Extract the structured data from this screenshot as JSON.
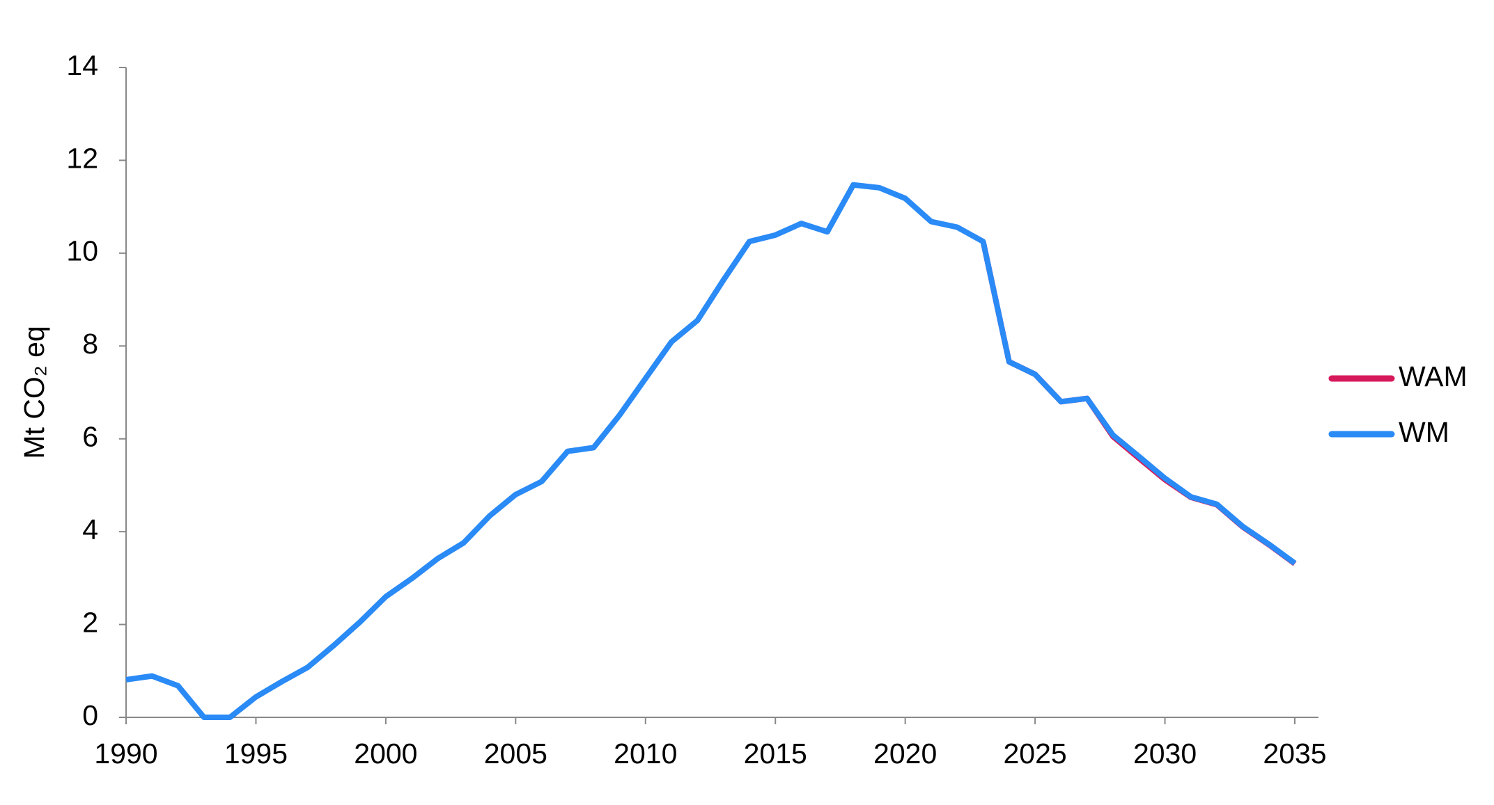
{
  "chart_data": {
    "type": "line",
    "y_label": "Mt CO₂ eq",
    "x": [
      1990,
      1991,
      1992,
      1993,
      1994,
      1995,
      1996,
      1997,
      1998,
      1999,
      2000,
      2001,
      2002,
      2003,
      2004,
      2005,
      2006,
      2007,
      2008,
      2009,
      2010,
      2011,
      2012,
      2013,
      2014,
      2015,
      2016,
      2017,
      2018,
      2019,
      2020,
      2021,
      2022,
      2023,
      2024,
      2025,
      2026,
      2027,
      2028,
      2029,
      2030,
      2031,
      2032,
      2033,
      2034,
      2035
    ],
    "series": [
      {
        "name": "WAM",
        "color": "#d6195a",
        "values": [
          null,
          null,
          null,
          null,
          null,
          null,
          null,
          null,
          null,
          null,
          null,
          null,
          null,
          null,
          null,
          null,
          null,
          null,
          null,
          null,
          null,
          null,
          null,
          null,
          null,
          null,
          null,
          null,
          null,
          null,
          null,
          null,
          null,
          10.25,
          7.66,
          7.39,
          6.8,
          6.87,
          6.05,
          5.58,
          5.12,
          4.74,
          4.58,
          4.1,
          3.72,
          3.31
        ]
      },
      {
        "name": "WM",
        "color": "#2a8af6",
        "values": [
          0.81,
          0.89,
          0.68,
          0,
          0,
          0.44,
          0.77,
          1.08,
          1.55,
          2.05,
          2.6,
          2.99,
          3.42,
          3.76,
          4.34,
          4.8,
          5.08,
          5.73,
          5.81,
          6.51,
          7.3,
          8.09,
          8.55,
          9.42,
          10.25,
          10.39,
          10.64,
          10.46,
          11.47,
          11.41,
          11.18,
          10.68,
          10.56,
          10.25,
          7.66,
          7.39,
          6.8,
          6.87,
          6.08,
          5.62,
          5.15,
          4.75,
          4.59,
          4.11,
          3.73,
          3.32
        ]
      }
    ],
    "xlim": [
      1990,
      2035
    ],
    "xticks": [
      1990,
      1995,
      2000,
      2005,
      2010,
      2015,
      2020,
      2025,
      2030,
      2035
    ],
    "ylim": [
      0,
      14
    ],
    "yticks": [
      0,
      2,
      4,
      6,
      8,
      10,
      12,
      14
    ],
    "grid": false,
    "legend": "right"
  }
}
